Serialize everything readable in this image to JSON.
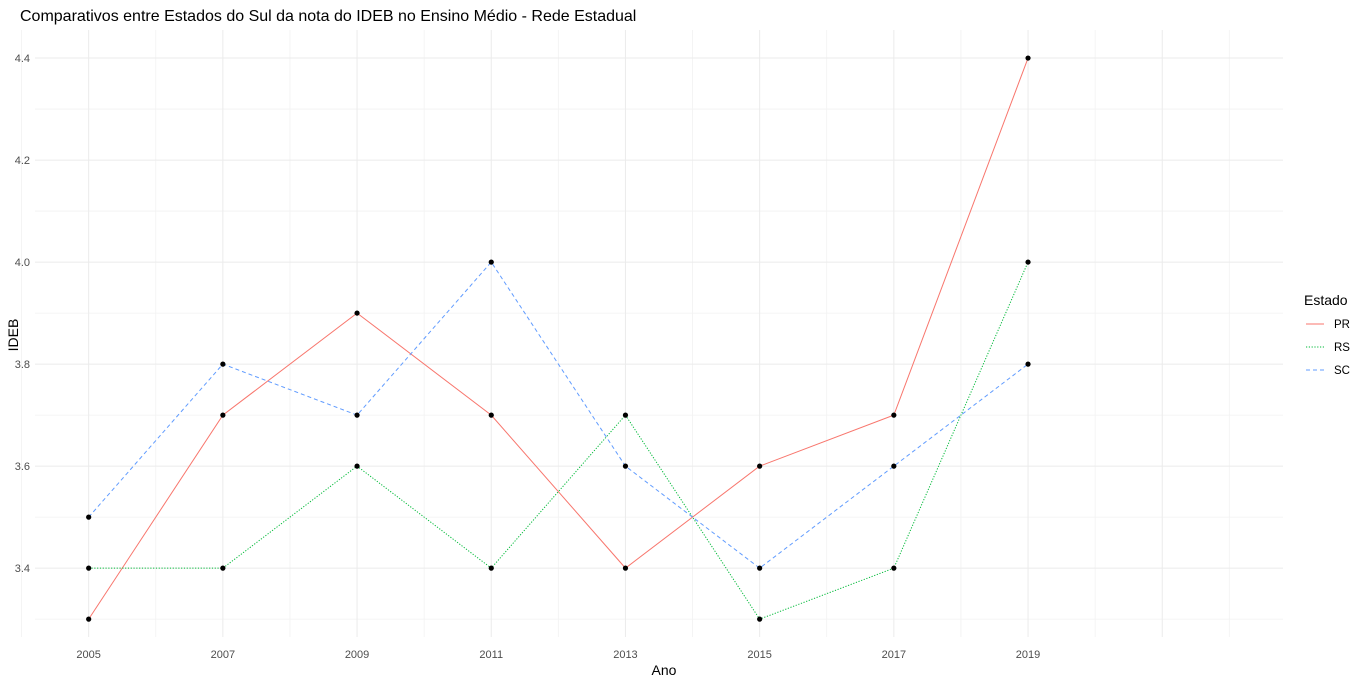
{
  "chart_data": {
    "type": "line",
    "title": "Comparativos entre Estados do Sul da nota do IDEB no Ensino Médio - Rede Estadual",
    "xlabel": "Ano",
    "ylabel": "IDEB",
    "x": [
      2005,
      2007,
      2009,
      2011,
      2013,
      2015,
      2017,
      2019
    ],
    "x_ticks": [
      "2005",
      "2007",
      "2009",
      "2011",
      "2013",
      "2015",
      "2017",
      "2019"
    ],
    "y_ticks": [
      "3.4",
      "3.6",
      "3.8",
      "4.0",
      "4.2",
      "4.4"
    ],
    "xlim": [
      2004.2,
      2022.8
    ],
    "ylim": [
      3.265,
      4.455
    ],
    "grid": true,
    "legend_title": "Estado",
    "legend_position": "right",
    "series": [
      {
        "name": "PR",
        "color": "#F8766D",
        "linetype": "solid",
        "values": [
          3.3,
          3.7,
          3.9,
          3.7,
          3.4,
          3.6,
          3.7,
          4.4
        ]
      },
      {
        "name": "RS",
        "color": "#00BA38",
        "linetype": "dotted",
        "values": [
          3.4,
          3.4,
          3.6,
          3.4,
          3.7,
          3.3,
          3.4,
          4.0
        ]
      },
      {
        "name": "SC",
        "color": "#619CFF",
        "linetype": "dashed",
        "values": [
          3.5,
          3.8,
          3.7,
          4.0,
          3.6,
          3.4,
          3.6,
          3.8
        ]
      }
    ],
    "point_color": "#000000"
  }
}
